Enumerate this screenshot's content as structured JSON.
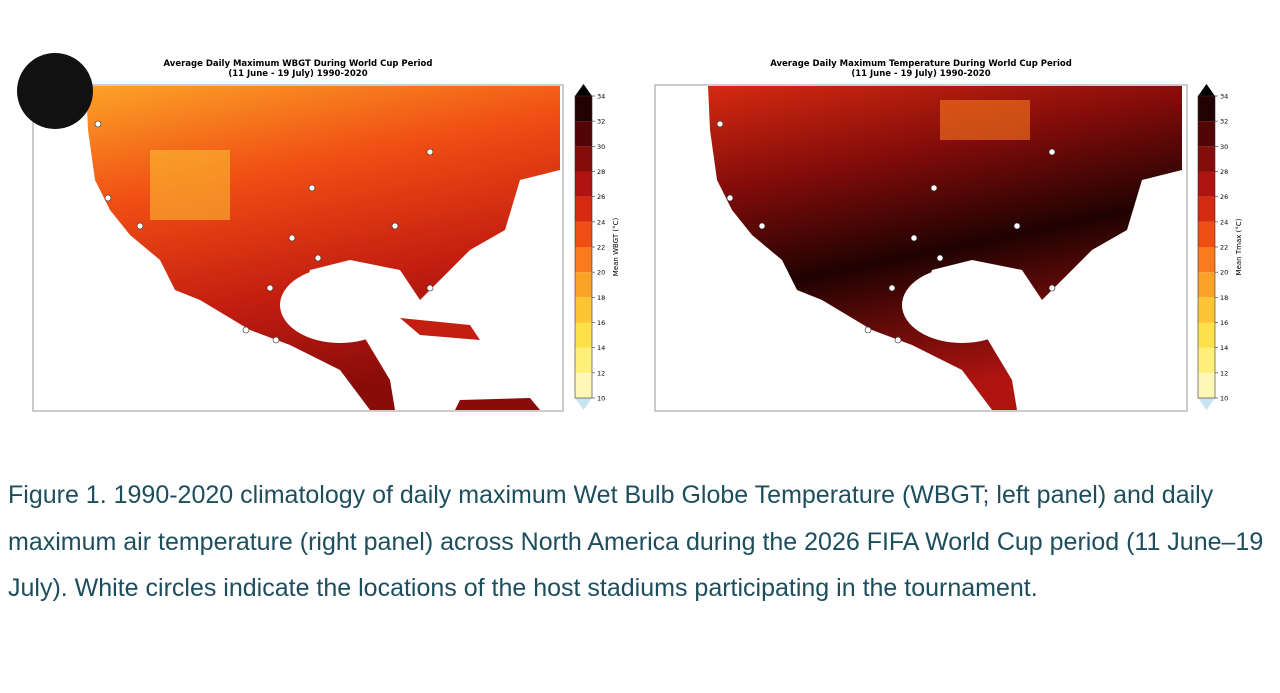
{
  "figure": {
    "panels": [
      {
        "title": "Average Daily Maximum WBGT During World Cup Period",
        "subtitle": "(11 June - 19 July) 1990-2020",
        "colorbar_label": "Mean WBGT (°C)"
      },
      {
        "title": "Average Daily Maximum Temperature During World Cup Period",
        "subtitle": "(11 June - 19 July) 1990-2020",
        "colorbar_label": "Mean Tmax (°C)"
      }
    ],
    "colorbar": {
      "ticks": [
        10,
        12,
        14,
        16,
        18,
        20,
        22,
        24,
        26,
        28,
        30,
        32,
        34
      ],
      "colors": [
        "#fff7b8",
        "#fff07a",
        "#fde04a",
        "#fdc534",
        "#fca327",
        "#fa7a1e",
        "#f04e14",
        "#d62a10",
        "#b01410",
        "#840c0a",
        "#520505",
        "#220202"
      ],
      "low_color": "#c8e4f4",
      "high_color": "#000000"
    },
    "caption": "Figure 1. 1990-2020 climatology of daily maximum Wet Bulb Globe Temperature (WBGT; left panel) and daily maximum air temperature (right panel) across North America during the 2026 FIFA World Cup period (11 June–19 July). White circles indicate the locations of the host stadiums participating in the tournament."
  }
}
